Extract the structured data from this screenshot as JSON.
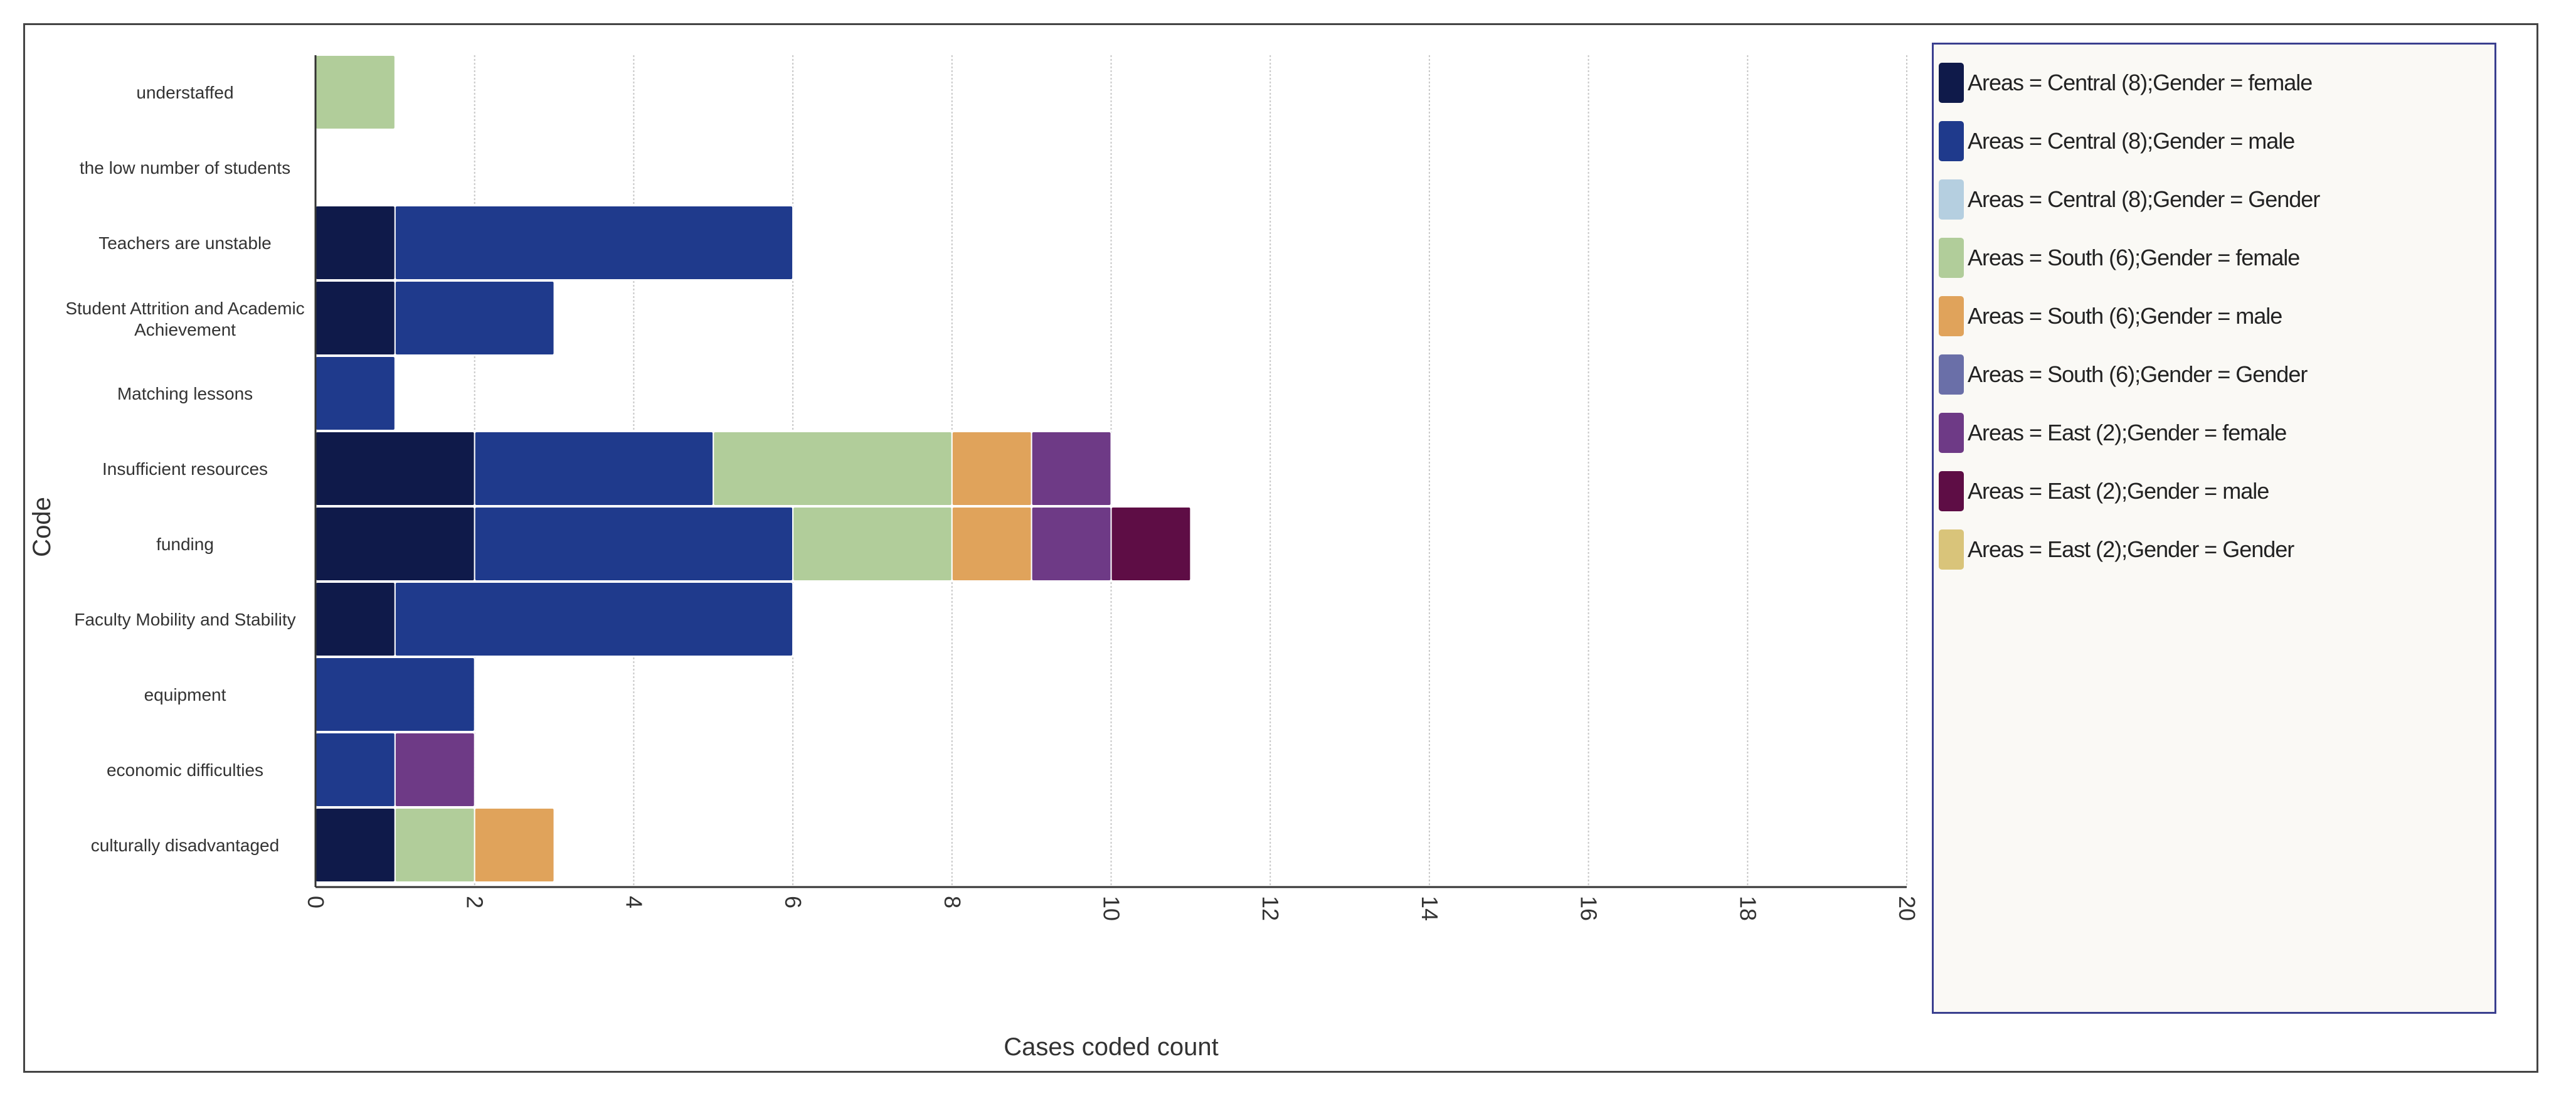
{
  "chart_data": {
    "type": "bar",
    "orientation": "horizontal",
    "stacked": true,
    "title": "",
    "xlabel": "Cases coded count",
    "ylabel": "Code",
    "xlim": [
      0,
      20
    ],
    "xticks": [
      0,
      2,
      4,
      6,
      8,
      10,
      12,
      14,
      16,
      18,
      20
    ],
    "grid": true,
    "legend_position": "right",
    "categories": [
      "understaffed",
      "the low number of students",
      "Teachers are unstable",
      "Student Attrition and Academic Achievement",
      "Matching lessons",
      "Insufficient resources",
      "funding",
      "Faculty Mobility and Stability",
      "equipment",
      "economic difficulties",
      "culturally disadvantaged"
    ],
    "series": [
      {
        "name": "Areas = Central (8);Gender = female",
        "color": "#0f1a4a",
        "values": [
          0,
          0,
          1,
          1,
          0,
          2,
          2,
          1,
          0,
          0,
          1
        ]
      },
      {
        "name": "Areas = Central (8);Gender = male",
        "color": "#1f3a8c",
        "values": [
          0,
          0,
          5,
          2,
          1,
          3,
          4,
          5,
          2,
          1,
          0
        ]
      },
      {
        "name": "Areas = Central (8);Gender = Gender",
        "color": "#b5cfe0",
        "values": [
          0,
          0,
          0,
          0,
          0,
          0,
          0,
          0,
          0,
          0,
          0
        ]
      },
      {
        "name": "Areas = South (6);Gender = female",
        "color": "#b1cd9a",
        "values": [
          1,
          0,
          0,
          0,
          0,
          3,
          2,
          0,
          0,
          0,
          1
        ]
      },
      {
        "name": "Areas = South (6);Gender = male",
        "color": "#e0a35b",
        "values": [
          0,
          0,
          0,
          0,
          0,
          1,
          1,
          0,
          0,
          0,
          1
        ]
      },
      {
        "name": "Areas = South (6);Gender = Gender",
        "color": "#6a6fa8",
        "values": [
          0,
          0,
          0,
          0,
          0,
          0,
          0,
          0,
          0,
          0,
          0
        ]
      },
      {
        "name": "Areas = East (2);Gender = female",
        "color": "#6e3a86",
        "values": [
          0,
          0,
          0,
          0,
          0,
          1,
          1,
          0,
          0,
          1,
          0
        ]
      },
      {
        "name": "Areas = East (2);Gender = male",
        "color": "#5e0d45",
        "values": [
          0,
          0,
          0,
          0,
          0,
          0,
          1,
          0,
          0,
          0,
          0
        ]
      },
      {
        "name": "Areas = East (2);Gender = Gender",
        "color": "#d9c47a",
        "values": [
          0,
          0,
          0,
          0,
          0,
          0,
          0,
          0,
          0,
          0,
          0
        ]
      }
    ]
  }
}
